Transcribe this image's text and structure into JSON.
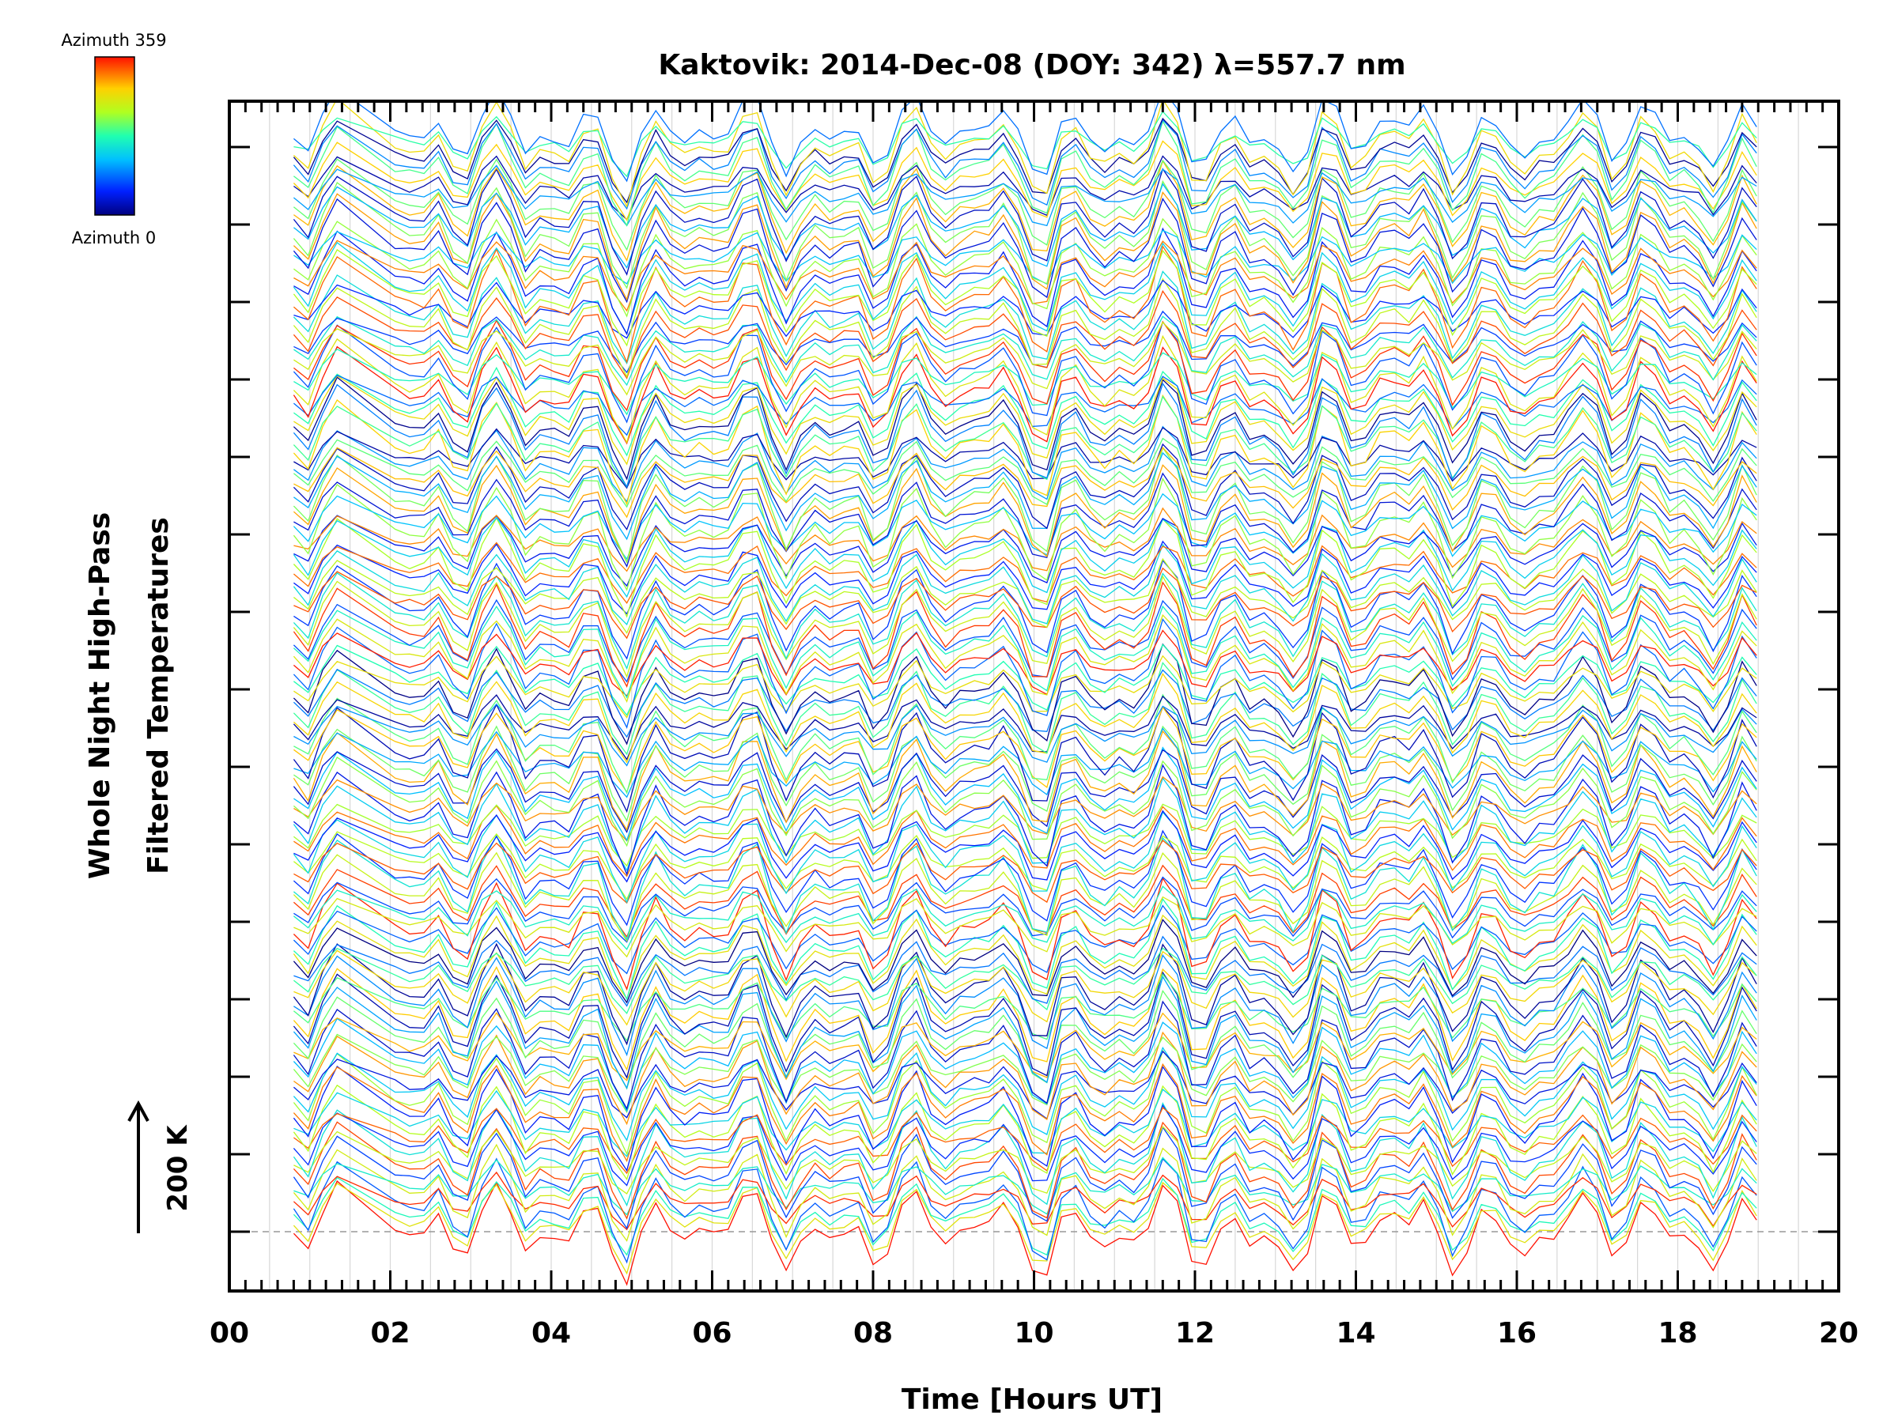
{
  "chart_data": {
    "type": "line",
    "title": "Kaktovik: 2014-Dec-08 (DOY: 342) λ=557.7 nm",
    "xlabel": "Time [Hours UT]",
    "ylabel_line1": "Whole Night High-Pass",
    "ylabel_line2": "Filtered Temperatures",
    "xlim": [
      0,
      20
    ],
    "x_tick_labels": [
      "00",
      "02",
      "04",
      "06",
      "08",
      "10",
      "12",
      "14",
      "16",
      "18",
      "20"
    ],
    "x_tick_values": [
      0,
      2,
      4,
      6,
      8,
      10,
      12,
      14,
      16,
      18,
      20
    ],
    "x_minor_tick_step": 0.2,
    "x_gridlines_step": 0.5,
    "data_x_range": [
      0.8,
      19.0
    ],
    "n_traces": 144,
    "trace_offset_k": 200,
    "baseline_gridline": "dashed",
    "scale_bar_label": "200 K",
    "legend": {
      "top_label": "Azimuth 359",
      "bottom_label": "Azimuth 0",
      "colormap": "rainbow",
      "position": "top-left"
    },
    "colors": [
      "#000090",
      "#0000ff",
      "#00b4ff",
      "#00ffc8",
      "#80ff00",
      "#ffd000",
      "#ff4000",
      "#ff0000"
    ]
  }
}
